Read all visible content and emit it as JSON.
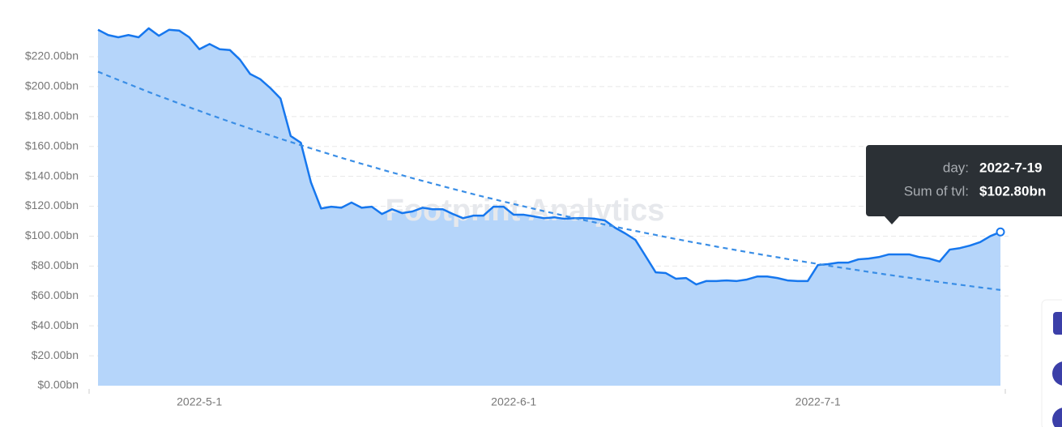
{
  "chart_data": {
    "type": "area",
    "x": [
      "2022-4-21",
      "2022-4-22",
      "2022-4-23",
      "2022-4-24",
      "2022-4-25",
      "2022-4-26",
      "2022-4-27",
      "2022-4-28",
      "2022-4-29",
      "2022-4-30",
      "2022-5-1",
      "2022-5-2",
      "2022-5-3",
      "2022-5-4",
      "2022-5-5",
      "2022-5-6",
      "2022-5-7",
      "2022-5-8",
      "2022-5-9",
      "2022-5-10",
      "2022-5-11",
      "2022-5-12",
      "2022-5-13",
      "2022-5-14",
      "2022-5-15",
      "2022-5-16",
      "2022-5-17",
      "2022-5-18",
      "2022-5-19",
      "2022-5-20",
      "2022-5-21",
      "2022-5-22",
      "2022-5-23",
      "2022-5-24",
      "2022-5-25",
      "2022-5-26",
      "2022-5-27",
      "2022-5-28",
      "2022-5-29",
      "2022-5-30",
      "2022-5-31",
      "2022-6-1",
      "2022-6-2",
      "2022-6-3",
      "2022-6-4",
      "2022-6-5",
      "2022-6-6",
      "2022-6-7",
      "2022-6-8",
      "2022-6-9",
      "2022-6-10",
      "2022-6-11",
      "2022-6-12",
      "2022-6-13",
      "2022-6-14",
      "2022-6-15",
      "2022-6-16",
      "2022-6-17",
      "2022-6-18",
      "2022-6-19",
      "2022-6-20",
      "2022-6-21",
      "2022-6-22",
      "2022-6-23",
      "2022-6-24",
      "2022-6-25",
      "2022-6-26",
      "2022-6-27",
      "2022-6-28",
      "2022-6-29",
      "2022-6-30",
      "2022-7-1",
      "2022-7-2",
      "2022-7-3",
      "2022-7-4",
      "2022-7-5",
      "2022-7-6",
      "2022-7-7",
      "2022-7-8",
      "2022-7-9",
      "2022-7-10",
      "2022-7-11",
      "2022-7-12",
      "2022-7-13",
      "2022-7-14",
      "2022-7-15",
      "2022-7-16",
      "2022-7-17",
      "2022-7-18",
      "2022-7-19"
    ],
    "series": [
      {
        "name": "Sum of tvl",
        "color": "#1677ee",
        "fill": "#b5d5fa",
        "values": [
          238,
          234.5,
          233,
          234.5,
          233,
          239,
          234,
          238,
          237.5,
          233,
          225,
          228.5,
          225,
          224.5,
          218,
          208.5,
          205,
          199,
          192,
          167,
          162.5,
          136,
          118.5,
          119.7,
          119,
          122.5,
          119,
          119.7,
          114.8,
          118,
          115.4,
          116.5,
          119,
          118,
          118,
          114.8,
          112,
          113.7,
          113.7,
          119.7,
          119.7,
          114.3,
          114.3,
          113.2,
          112,
          112.6,
          111.6,
          112,
          112,
          111.6,
          110.5,
          105.6,
          101.8,
          97.5,
          86.7,
          75.8,
          75.3,
          71.5,
          72,
          67.7,
          70,
          70,
          70.4,
          70,
          71,
          73,
          73,
          72,
          70.4,
          70,
          70,
          80.7,
          81.3,
          82.3,
          82.3,
          84.5,
          85,
          86,
          87.8,
          87.8,
          87.8,
          86,
          85,
          83,
          91,
          92,
          93.7,
          96,
          100,
          102.8
        ]
      },
      {
        "color": "#3a8ee6",
        "dashed": true,
        "values": [
          210.0,
          207.2,
          204.5,
          201.8,
          199.1,
          196.4,
          193.8,
          191.3,
          188.7,
          186.2,
          183.8,
          181.3,
          178.9,
          176.5,
          174.2,
          171.9,
          169.6,
          167.4,
          165.1,
          163.0,
          160.8,
          158.7,
          156.6,
          154.5,
          152.4,
          150.4,
          148.4,
          146.5,
          144.5,
          142.6,
          140.7,
          138.8,
          137.0,
          135.2,
          133.4,
          131.6,
          129.9,
          128.1,
          126.4,
          124.8,
          123.1,
          121.5,
          119.9,
          118.3,
          116.7,
          115.2,
          113.6,
          112.1,
          110.6,
          109.2,
          107.7,
          106.3,
          104.9,
          103.5,
          102.1,
          100.8,
          99.4,
          98.1,
          96.8,
          95.5,
          94.3,
          93.0,
          91.8,
          90.6,
          89.4,
          88.2,
          87.0,
          85.9,
          84.7,
          83.6,
          82.5,
          81.4,
          80.3,
          79.2,
          78.2,
          77.2,
          76.1,
          75.1,
          74.1,
          73.1,
          72.2,
          71.2,
          70.3,
          69.3,
          68.4,
          67.5,
          66.6,
          65.7,
          64.9,
          64.0
        ]
      }
    ],
    "ylim": [
      0,
      240
    ],
    "yticks": [
      {
        "value": 0,
        "label": "$0.00bn"
      },
      {
        "value": 20,
        "label": "$20.00bn"
      },
      {
        "value": 40,
        "label": "$40.00bn"
      },
      {
        "value": 60,
        "label": "$60.00bn"
      },
      {
        "value": 80,
        "label": "$80.00bn"
      },
      {
        "value": 100,
        "label": "$100.00bn"
      },
      {
        "value": 120,
        "label": "$120.00bn"
      },
      {
        "value": 140,
        "label": "$140.00bn"
      },
      {
        "value": 160,
        "label": "$160.00bn"
      },
      {
        "value": 180,
        "label": "$180.00bn"
      },
      {
        "value": 200,
        "label": "$200.00bn"
      },
      {
        "value": 220,
        "label": "$220.00bn"
      }
    ],
    "xticks": [
      "2022-5-1",
      "2022-6-1",
      "2022-7-1"
    ],
    "grid": true,
    "watermark": "Footprint Analytics",
    "tooltip": {
      "day_label": "day:",
      "value_label": "Sum of tvl:",
      "value_text": "$102.80bn"
    }
  }
}
